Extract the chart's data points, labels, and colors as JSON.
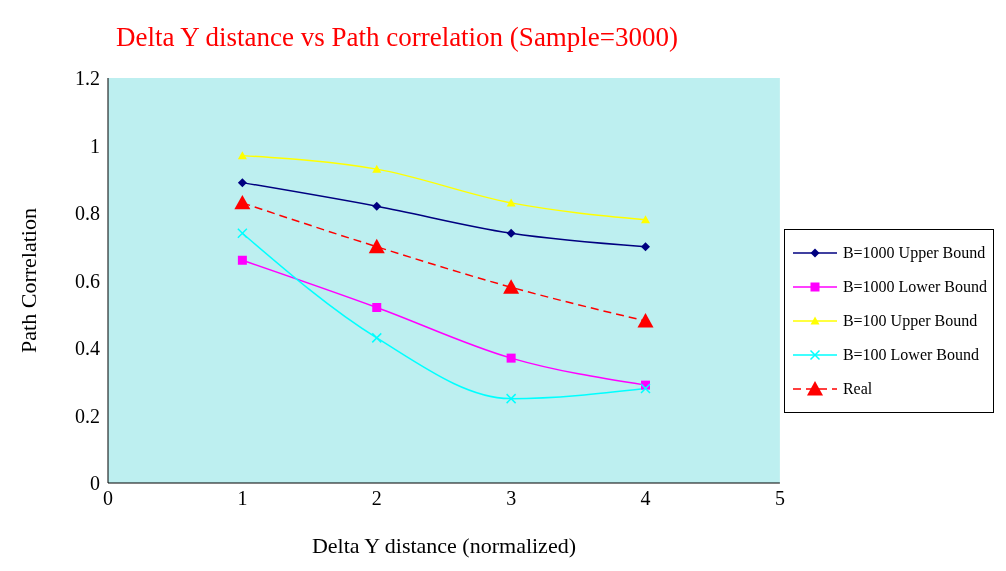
{
  "chart_data": {
    "type": "line",
    "title": "Delta Y distance vs Path correlation (Sample=3000)",
    "xlabel": "Delta Y distance (normalized)",
    "ylabel": "Path Correlation",
    "x": [
      1,
      2,
      3,
      4
    ],
    "xlim": [
      0,
      5
    ],
    "xticks": [
      0,
      1,
      2,
      3,
      4,
      5
    ],
    "ylim": [
      0,
      1.2
    ],
    "yticks": [
      0,
      0.2,
      0.4,
      0.6,
      0.8,
      1,
      1.2
    ],
    "grid": false,
    "legend": "right",
    "series": [
      {
        "name": "B=1000 Upper Bound",
        "color": "#000080",
        "marker": "diamond",
        "line_style": "solid",
        "values": [
          0.89,
          0.82,
          0.74,
          0.7
        ]
      },
      {
        "name": "B=1000 Lower Bound",
        "color": "#ff00ff",
        "marker": "square",
        "line_style": "solid",
        "values": [
          0.66,
          0.52,
          0.37,
          0.29
        ]
      },
      {
        "name": "B=100 Upper Bound",
        "color": "#ffff00",
        "marker": "triangle",
        "line_style": "solid",
        "values": [
          0.97,
          0.93,
          0.83,
          0.78
        ]
      },
      {
        "name": "B=100 Lower Bound",
        "color": "#00ffff",
        "marker": "cross",
        "line_style": "solid",
        "values": [
          0.74,
          0.43,
          0.25,
          0.28
        ]
      },
      {
        "name": "Real",
        "color": "#ff0000",
        "marker": "triangle",
        "line_style": "dashed",
        "values": [
          0.83,
          0.7,
          0.58,
          0.48
        ]
      }
    ]
  }
}
